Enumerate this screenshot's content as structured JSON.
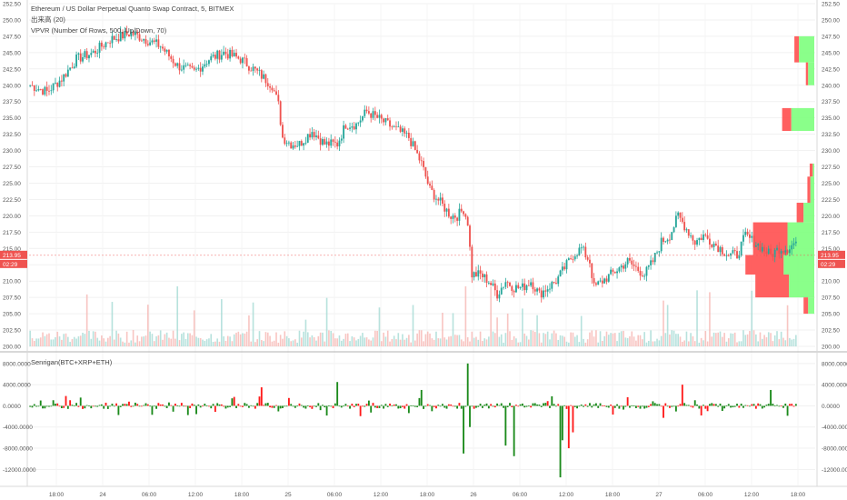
{
  "legend": {
    "title": "Ethereum / US Dollar Perpetual Quanto Swap Contract, 5, BITMEX",
    "volume": "出来高 (20)",
    "vpvr": "VPVR (Number Of Rows, 500, Up/Down, 70)",
    "indicator": "Senrigan(BTC+XRP+ETH)"
  },
  "price_badges": {
    "last_price": "213.95",
    "countdown": "02:29"
  },
  "colors": {
    "up": "#26a69a",
    "down": "#ef5350",
    "osc_up": "#1b8a1b",
    "osc_down": "#ff1a1a",
    "vp_up": "#7dff7d",
    "vp_down": "#ff4f4f"
  },
  "chart_data": [
    {
      "type": "candlestick",
      "name": "price",
      "y_ticks": [
        "200.00",
        "202.50",
        "205.00",
        "207.50",
        "210.00",
        "212.50",
        "215.00",
        "217.50",
        "220.00",
        "222.50",
        "225.00",
        "227.50",
        "230.00",
        "232.50",
        "235.00",
        "237.50",
        "240.00",
        "242.50",
        "245.00",
        "247.50",
        "250.00",
        "252.50"
      ],
      "ylim": [
        200,
        252.5
      ],
      "x_ticks": [
        "18:00",
        "24",
        "06:00",
        "12:00",
        "18:00",
        "25",
        "06:00",
        "12:00",
        "18:00",
        "26",
        "06:00",
        "12:00",
        "18:00",
        "27",
        "06:00",
        "12:00",
        "18:00"
      ],
      "close_path": [
        [
          0,
          240
        ],
        [
          8,
          239
        ],
        [
          15,
          241
        ],
        [
          22,
          244
        ],
        [
          30,
          245
        ],
        [
          38,
          247
        ],
        [
          48,
          248
        ],
        [
          55,
          247
        ],
        [
          62,
          246
        ],
        [
          70,
          243
        ],
        [
          78,
          242
        ],
        [
          85,
          244
        ],
        [
          92,
          245
        ],
        [
          100,
          244
        ],
        [
          108,
          242
        ],
        [
          115,
          240
        ],
        [
          118,
          237
        ],
        [
          120,
          232
        ],
        [
          124,
          231
        ],
        [
          128,
          231
        ],
        [
          134,
          233
        ],
        [
          140,
          231
        ],
        [
          146,
          231
        ],
        [
          150,
          234
        ],
        [
          155,
          234
        ],
        [
          160,
          236
        ],
        [
          165,
          235
        ],
        [
          170,
          234
        ],
        [
          175,
          233
        ],
        [
          180,
          232
        ],
        [
          186,
          228
        ],
        [
          190,
          224
        ],
        [
          195,
          222
        ],
        [
          200,
          220
        ],
        [
          203,
          220
        ],
        [
          206,
          221
        ],
        [
          208,
          219
        ],
        [
          210,
          211
        ],
        [
          214,
          211
        ],
        [
          218,
          210
        ],
        [
          222,
          208
        ],
        [
          226,
          210
        ],
        [
          230,
          209
        ],
        [
          234,
          209
        ],
        [
          238,
          210
        ],
        [
          242,
          208
        ],
        [
          246,
          209
        ],
        [
          250,
          210
        ],
        [
          254,
          212
        ],
        [
          258,
          214
        ],
        [
          262,
          215
        ],
        [
          266,
          213
        ],
        [
          268,
          209
        ],
        [
          272,
          210
        ],
        [
          276,
          211
        ],
        [
          280,
          212
        ],
        [
          284,
          213
        ],
        [
          288,
          212
        ],
        [
          292,
          211
        ],
        [
          296,
          213
        ],
        [
          300,
          216
        ],
        [
          304,
          217
        ],
        [
          308,
          220
        ],
        [
          312,
          218
        ],
        [
          316,
          216
        ],
        [
          320,
          217
        ],
        [
          324,
          216
        ],
        [
          328,
          215
        ],
        [
          332,
          214
        ],
        [
          336,
          214
        ],
        [
          340,
          217
        ],
        [
          344,
          216
        ],
        [
          348,
          215
        ],
        [
          352,
          214
        ],
        [
          356,
          215
        ],
        [
          360,
          215
        ],
        [
          364,
          216
        ]
      ],
      "close_path_units": "[bar index, price]"
    },
    {
      "type": "bar",
      "name": "volume",
      "note": "volume histogram at bottom of price pane"
    },
    {
      "type": "volume_profile",
      "name": "VPVR",
      "segments": [
        {
          "price_from": 243.5,
          "price_to": 247.5,
          "up": 0.2,
          "down": 0.06
        },
        {
          "price_from": 240.0,
          "price_to": 243.5,
          "up": 0.08,
          "down": 0.03
        },
        {
          "price_from": 233.0,
          "price_to": 236.5,
          "up": 0.3,
          "down": 0.12
        },
        {
          "price_from": 226.0,
          "price_to": 228.0,
          "up": 0.02,
          "down": 0.04
        },
        {
          "price_from": 222.0,
          "price_to": 226.0,
          "up": 0.05,
          "down": 0.04
        },
        {
          "price_from": 219.0,
          "price_to": 222.0,
          "up": 0.14,
          "down": 0.09
        },
        {
          "price_from": 214.0,
          "price_to": 219.0,
          "up": 0.35,
          "down": 0.45
        },
        {
          "price_from": 211.0,
          "price_to": 214.0,
          "up": 0.4,
          "down": 0.5
        },
        {
          "price_from": 207.5,
          "price_to": 211.0,
          "up": 0.33,
          "down": 0.44
        },
        {
          "price_from": 205.0,
          "price_to": 207.5,
          "up": 0.08,
          "down": 0.06
        }
      ]
    },
    {
      "type": "bar",
      "name": "Senrigan(BTC+XRP+ETH)",
      "y_ticks": [
        "8000.0000",
        "4000.0000",
        "0.0000",
        "-4000.0000",
        "-8000.0000",
        "-12000.0000"
      ],
      "ylim": [
        -14000,
        9000
      ]
    }
  ]
}
